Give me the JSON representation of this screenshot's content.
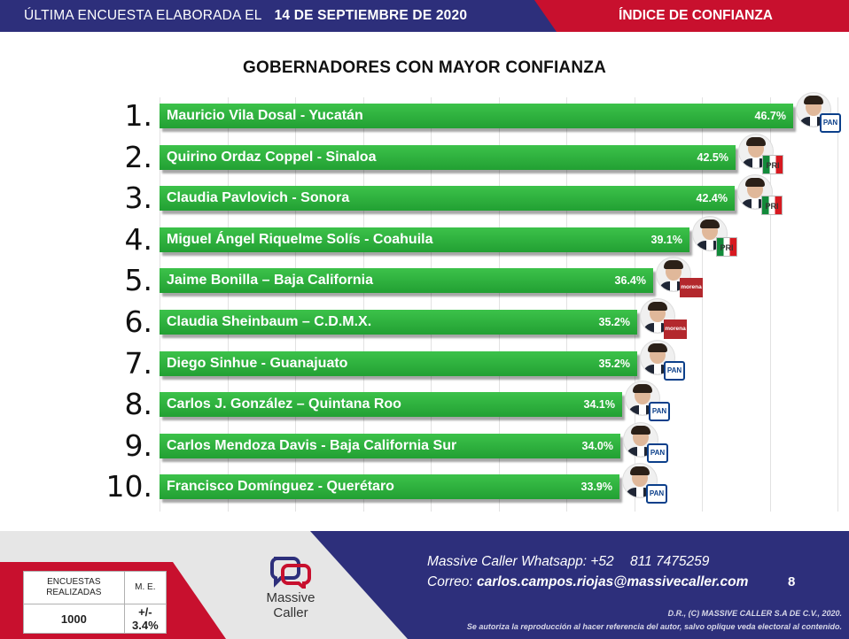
{
  "header": {
    "left_text": "ÚLTIMA ENCUESTA ELABORADA EL",
    "date": "14 DE SEPTIEMBRE DE 2020",
    "right_text": "ÍNDICE DE CONFIANZA"
  },
  "chart_data": {
    "type": "bar",
    "title": "GOBERNADORES CON MAYOR CONFIANZA",
    "orientation": "horizontal",
    "categories": [
      "Mauricio Vila Dosal - Yucatán",
      "Quirino Ordaz Coppel - Sinaloa",
      "Claudia Pavlovich - Sonora",
      "Miguel Ángel Riquelme Solís - Coahuila",
      "Jaime Bonilla – Baja California",
      "Claudia Sheinbaum – C.D.M.X.",
      "Diego Sinhue - Guanajuato",
      "Carlos J. González – Quintana Roo",
      "Carlos Mendoza Davis - Baja California Sur",
      "Francisco Domínguez - Querétaro"
    ],
    "ranks": [
      "1.",
      "2.",
      "3.",
      "4.",
      "5.",
      "6.",
      "7.",
      "8.",
      "9.",
      "10."
    ],
    "values": [
      46.7,
      42.5,
      42.4,
      39.1,
      36.4,
      35.2,
      35.2,
      34.1,
      34.0,
      33.9
    ],
    "value_labels": [
      "46.7%",
      "42.5%",
      "42.4%",
      "39.1%",
      "36.4%",
      "35.2%",
      "35.2%",
      "34.1%",
      "34.0%",
      "33.9%"
    ],
    "parties": [
      "PAN",
      "PRI",
      "PRI",
      "PRI",
      "morena",
      "morena",
      "PAN",
      "PAN",
      "PAN",
      "PAN"
    ],
    "bar_color": "#2db23c",
    "xlim": [
      0,
      50
    ],
    "grid": true
  },
  "party_colors": {
    "PAN": "#0b3f8a",
    "PRI": "#d71920",
    "morena": "#b3282d"
  },
  "stats": {
    "col1_header": "ENCUESTAS REALIZADAS",
    "col2_header": "M. E.",
    "col1_value": "1000",
    "col2_value": "+/- 3.4%"
  },
  "logo": {
    "line1": "Massive",
    "line2": "Caller"
  },
  "contact": {
    "whatsapp_label": "Massive Caller Whatsapp: +52",
    "whatsapp_number": "811 7475259",
    "email_label": "Correo:",
    "email": "carlos.campos.riojas@massivecaller.com"
  },
  "page_number": "8",
  "copyright": {
    "line1": "D.R., (C) MASSIVE CALLER S.A DE C.V., 2020.",
    "line2": "Se autoriza la reproducción al hacer referencia del autor, salvo oplique veda electoral al contenido."
  },
  "colors": {
    "navy": "#2d2f7b",
    "red": "#c8102e",
    "green": "#2db23c"
  }
}
